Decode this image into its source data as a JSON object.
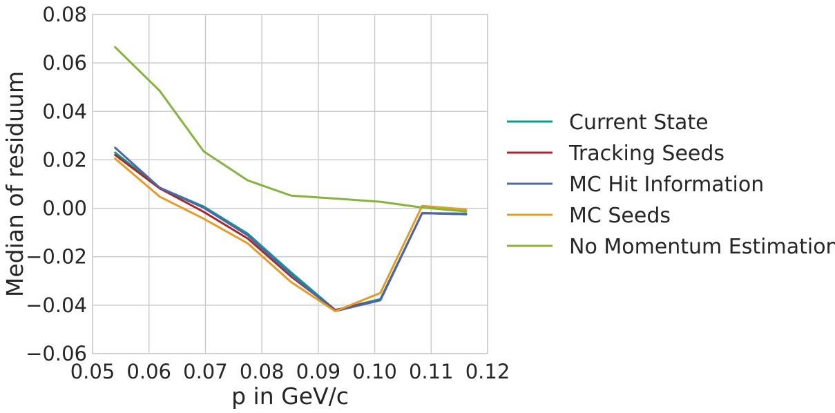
{
  "chart_data": {
    "type": "line",
    "title": "",
    "xlabel": "p in GeV/c",
    "ylabel": "Median of residuum",
    "xlim": [
      0.05,
      0.12
    ],
    "ylim": [
      -0.06,
      0.08
    ],
    "x_ticks": [
      "0.05",
      "0.06",
      "0.07",
      "0.08",
      "0.09",
      "0.10",
      "0.11",
      "0.12"
    ],
    "y_ticks": [
      "0.08",
      "0.06",
      "0.04",
      "0.02",
      "0.00",
      "−0.02",
      "−0.04",
      "−0.06"
    ],
    "grid": true,
    "legend_position": "right, outside plot",
    "x": [
      0.054,
      0.0619,
      0.0697,
      0.0775,
      0.0852,
      0.093,
      0.101,
      0.1084,
      0.1162
    ],
    "series": [
      {
        "name": "Current State",
        "color": "#11978c",
        "values": [
          0.023,
          0.0085,
          0.0007,
          -0.0105,
          -0.0265,
          -0.042,
          -0.0375,
          -0.002,
          -0.0022
        ]
      },
      {
        "name": "Tracking Seeds",
        "color": "#a8282b",
        "values": [
          0.022,
          0.0082,
          -0.0015,
          -0.0125,
          -0.0282,
          -0.042,
          -0.038,
          -0.002,
          -0.0025
        ]
      },
      {
        "name": "MC Hit Information",
        "color": "#4c67a8",
        "values": [
          0.025,
          0.0085,
          0.0002,
          -0.0112,
          -0.0275,
          -0.0425,
          -0.038,
          -0.002,
          -0.0025
        ]
      },
      {
        "name": "MC Seeds",
        "color": "#e59c24",
        "values": [
          0.0205,
          0.0048,
          -0.0043,
          -0.0145,
          -0.0305,
          -0.0425,
          -0.035,
          0.001,
          -0.0005
        ]
      },
      {
        "name": "No Momentum Estimation",
        "color": "#85b43c",
        "values": [
          0.0665,
          0.0485,
          0.0235,
          0.0115,
          0.0052,
          0.004,
          0.0027,
          0.0003,
          -0.0013
        ]
      }
    ]
  }
}
